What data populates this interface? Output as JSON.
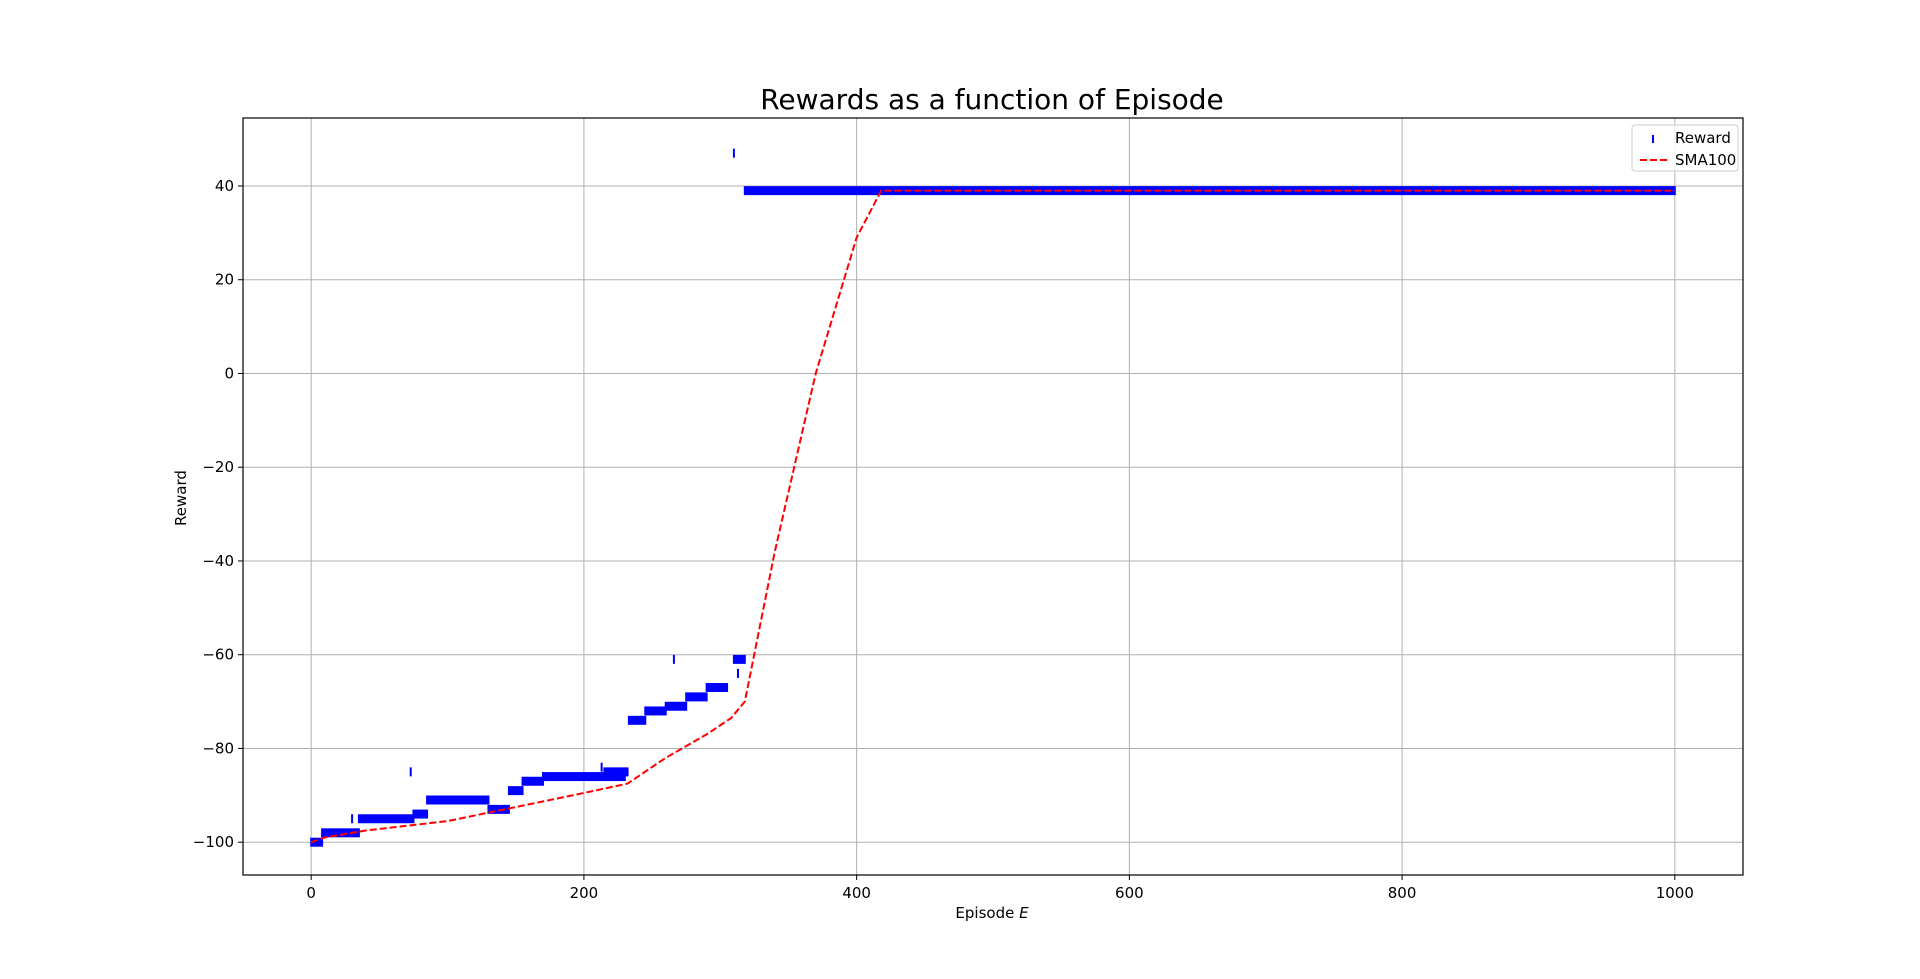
{
  "chart_data": {
    "type": "scatter",
    "title": "Rewards as a function of Episode",
    "xlabel_prefix": "Episode ",
    "xlabel_symbol": "E",
    "ylabel": "Reward",
    "xlim": [
      -50,
      1050
    ],
    "ylim": [
      -107,
      54.5
    ],
    "xticks": [
      0,
      200,
      400,
      600,
      800,
      1000
    ],
    "yticks": [
      -100,
      -80,
      -60,
      -40,
      -20,
      0,
      20,
      40
    ],
    "grid": true,
    "legend_position": "top-right",
    "series": [
      {
        "name": "Reward",
        "kind": "scatter",
        "marker": "vertical-bar",
        "color": "#0000ff",
        "segments": [
          {
            "x_start": 0,
            "x_end": 8,
            "y": -100
          },
          {
            "x_start": 8,
            "x_end": 35,
            "y": -98
          },
          {
            "x_start": 35,
            "x_end": 75,
            "y": -95
          },
          {
            "x_start": 75,
            "x_end": 85,
            "y": -94
          },
          {
            "x_start": 85,
            "x_end": 130,
            "y": -91
          },
          {
            "x_start": 130,
            "x_end": 145,
            "y": -93
          },
          {
            "x_start": 145,
            "x_end": 155,
            "y": -89
          },
          {
            "x_start": 155,
            "x_end": 170,
            "y": -87
          },
          {
            "x_start": 170,
            "x_end": 230,
            "y": -86
          },
          {
            "x_start": 215,
            "x_end": 232,
            "y": -85
          },
          {
            "x_start": 233,
            "x_end": 245,
            "y": -74
          },
          {
            "x_start": 245,
            "x_end": 260,
            "y": -72
          },
          {
            "x_start": 260,
            "x_end": 275,
            "y": -71
          },
          {
            "x_start": 275,
            "x_end": 290,
            "y": -69
          },
          {
            "x_start": 290,
            "x_end": 305,
            "y": -67
          },
          {
            "x_start": 310,
            "x_end": 318,
            "y": -61
          },
          {
            "x_start": 318,
            "x_end": 1000,
            "y": 39
          }
        ],
        "points": [
          {
            "x": 73,
            "y": -85
          },
          {
            "x": 266,
            "y": -61
          },
          {
            "x": 310,
            "y": 47
          },
          {
            "x": 313,
            "y": -64
          },
          {
            "x": 30,
            "y": -95
          },
          {
            "x": 213,
            "y": -84
          }
        ]
      },
      {
        "name": "SMA100",
        "kind": "line",
        "style": "dashed",
        "color": "#ff0000",
        "x": [
          0,
          10,
          40,
          100,
          150,
          200,
          232,
          260,
          290,
          308,
          318,
          340,
          370,
          400,
          418,
          1000
        ],
        "y": [
          -100,
          -99,
          -97.5,
          -95.5,
          -92.5,
          -89.5,
          -87.5,
          -82,
          -77,
          -73.5,
          -70,
          -38,
          0,
          29,
          39,
          39
        ]
      }
    ]
  }
}
